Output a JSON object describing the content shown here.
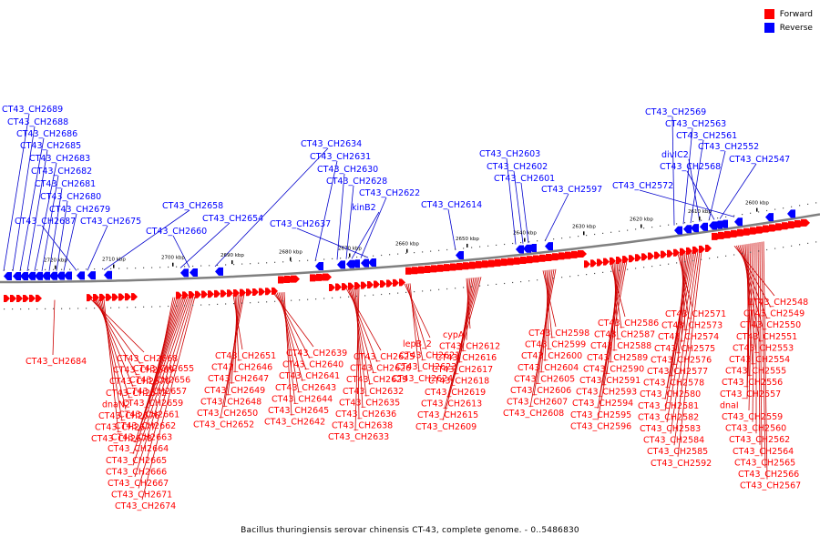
{
  "legend": {
    "items": [
      {
        "label": "Forward",
        "color": "#ff0000"
      },
      {
        "label": "Reverse",
        "color": "#0000ff"
      }
    ]
  },
  "caption": "Bacillus thuringiensis serovar chinensis CT-43, complete genome. - 0..5486830",
  "colors": {
    "forward": "#ff0000",
    "reverse": "#0000ff",
    "axis": "#808080",
    "leader_forward": "#cc0000",
    "leader_reverse": "#0000cc"
  },
  "axis": {
    "tick_labels": [
      "2720 kbp",
      "2710 kbp",
      "2700 kbp",
      "2690 kbp",
      "2680 kbp",
      "2670 kbp",
      "2660 kbp",
      "2650 kbp",
      "2640 kbp",
      "2630 kbp",
      "2620 kbp",
      "2610 kbp",
      "2600 kbp"
    ]
  },
  "reverse_labels": [
    "CT43_CH2689",
    "CT43_CH2688",
    "CT43_CH2686",
    "CT43_CH2685",
    "CT43_CH2683",
    "CT43_CH2682",
    "CT43_CH2681",
    "CT43_CH2680",
    "CT43_CH2679",
    "CT43_CH2687",
    "CT43_CH2675",
    "CT43_CH2658",
    "CT43_CH2654",
    "CT43_CH2660",
    "CT43_CH2634",
    "CT43_CH2631",
    "CT43_CH2630",
    "CT43_CH2628",
    "kinB2",
    "CT43_CH2622",
    "CT43_CH2637",
    "CT43_CH2614",
    "CT43_CH2603",
    "CT43_CH2602",
    "CT43_CH2601",
    "CT43_CH2597",
    "CT43_CH2569",
    "CT43_CH2563",
    "CT43_CH2561",
    "divIC2",
    "CT43_CH2552",
    "CT43_CH2568",
    "CT43_CH2547",
    "CT43_CH2572"
  ],
  "forward_labels": [
    "CT43_CH2684",
    "CT43_CH2668",
    "CT43_CH2669",
    "CT43_CH2670",
    "CT43_CH2672",
    "dnaN2",
    "CT43_CH2676",
    "CT43_CH2677",
    "CT43_CH2678",
    "CT43_CH2655",
    "CT43_CH2656",
    "CT43_CH2657",
    "CT43_CH2659",
    "CT43_CH2661",
    "CT43_CH2662",
    "CT43_CH2663",
    "CT43_CH2664",
    "CT43_CH2665",
    "CT43_CH2666",
    "CT43_CH2667",
    "CT43_CH2671",
    "CT43_CH2674",
    "CT43_CH2651",
    "CT43_CH2646",
    "CT43_CH2647",
    "CT43_CH2649",
    "CT43_CH2648",
    "CT43_CH2650",
    "CT43_CH2652",
    "CT43_CH2639",
    "CT43_CH2640",
    "CT43_CH2641",
    "CT43_CH2643",
    "CT43_CH2644",
    "CT43_CH2645",
    "CT43_CH2642",
    "CT43_CH2625",
    "CT43_CH2626",
    "CT43_CH2629",
    "CT43_CH2632",
    "CT43_CH2635",
    "CT43_CH2636",
    "CT43_CH2638",
    "CT43_CH2633",
    "lepB_2",
    "CT43_CH2621",
    "CT43_CH2623",
    "CT43_CH2624",
    "cypA",
    "CT43_CH2612",
    "CT43_CH2616",
    "CT43_CH2617",
    "CT43_CH2618",
    "CT43_CH2619",
    "CT43_CH2613",
    "CT43_CH2615",
    "CT43_CH2609",
    "CT43_CH2598",
    "CT43_CH2599",
    "CT43_CH2600",
    "CT43_CH2604",
    "CT43_CH2605",
    "CT43_CH2606",
    "CT43_CH2607",
    "CT43_CH2608",
    "CT43_CH2586",
    "CT43_CH2587",
    "CT43_CH2588",
    "CT43_CH2589",
    "CT43_CH2590",
    "CT43_CH2591",
    "CT43_CH2593",
    "CT43_CH2594",
    "CT43_CH2595",
    "CT43_CH2596",
    "CT43_CH2571",
    "CT43_CH2573",
    "CT43_CH2574",
    "CT43_CH2575",
    "CT43_CH2576",
    "CT43_CH2577",
    "CT43_CH2578",
    "CT43_CH2580",
    "CT43_CH2581",
    "CT43_CH2582",
    "CT43_CH2583",
    "CT43_CH2584",
    "CT43_CH2585",
    "CT43_CH2592",
    "CT43_CH2548",
    "CT43_CH2549",
    "CT43_CH2550",
    "CT43_CH2551",
    "CT43_CH2553",
    "CT43_CH2554",
    "CT43_CH2555",
    "CT43_CH2556",
    "CT43_CH2557",
    "dnaI",
    "CT43_CH2559",
    "CT43_CH2560",
    "CT43_CH2562",
    "CT43_CH2564",
    "CT43_CH2565",
    "CT43_CH2566",
    "CT43_CH2567"
  ]
}
